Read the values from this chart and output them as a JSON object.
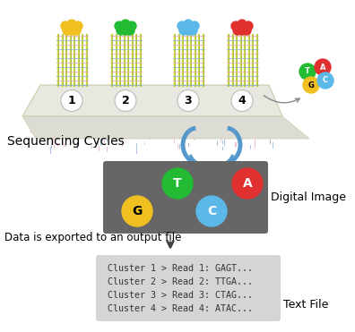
{
  "bg_color": "#ffffff",
  "sequencing_label": "Sequencing Cycles",
  "digital_image_label": "Digital Image",
  "export_label": "Data is exported to an output file",
  "text_file_label": "Text File",
  "cluster_lines": [
    "Cluster 1 > Read 1: GAGT...",
    "Cluster 2 > Read 2: TTGA...",
    "Cluster 3 > Read 3: CTAG...",
    "Cluster 4 > Read 4: ATAC..."
  ],
  "cluster_numbers": [
    "1",
    "2",
    "3",
    "4"
  ],
  "dna_colors": [
    "#f0c020",
    "#22bb33",
    "#5bb8e8",
    "#e03030"
  ],
  "dot_colors_panel": {
    "G": "#f0c020",
    "T": "#22bb33",
    "C": "#5bb8e8",
    "A": "#e03030"
  },
  "legend_colors": {
    "T": "#22bb33",
    "A": "#e03030",
    "G": "#f0c020",
    "C": "#5bb8e8"
  },
  "arrow_color": "#5599cc",
  "dark_panel_color": "#666666",
  "cluster_panel_color": "#d5d5d5",
  "platform_color_face": "#e8e8e0",
  "platform_color_edge": "#ccccaa",
  "strand_color1": "#ccd840",
  "strand_color2": "#a0b818",
  "tick_color1": "#e8a0c0",
  "tick_color2": "#88aadd"
}
